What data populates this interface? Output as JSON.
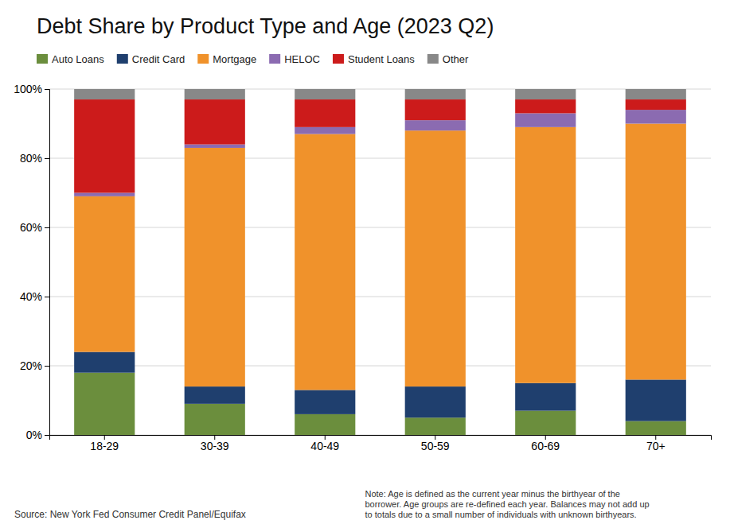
{
  "chart_data": {
    "type": "bar",
    "title": "Debt Share by Product Type and Age (2023 Q2)",
    "categories": [
      "18-29",
      "30-39",
      "40-49",
      "50-59",
      "60-69",
      "70+"
    ],
    "series": [
      {
        "name": "Auto Loans",
        "color": "#6b8e3d",
        "values": [
          18,
          9,
          6,
          5,
          7,
          4
        ]
      },
      {
        "name": "Credit Card",
        "color": "#1f3f6e",
        "values": [
          6,
          5,
          7,
          9,
          8,
          12
        ]
      },
      {
        "name": "Mortgage",
        "color": "#f0922b",
        "values": [
          45,
          69,
          74,
          74,
          74,
          74
        ]
      },
      {
        "name": "HELOC",
        "color": "#8b6bb1",
        "values": [
          1,
          1,
          2,
          3,
          4,
          4
        ]
      },
      {
        "name": "Student Loans",
        "color": "#cc1b1b",
        "values": [
          27,
          13,
          8,
          6,
          4,
          3
        ]
      },
      {
        "name": "Other",
        "color": "#888888",
        "values": [
          3,
          3,
          3,
          3,
          3,
          3
        ]
      }
    ],
    "stacked": true,
    "ylim": [
      0,
      100
    ],
    "yticks": [
      {
        "value": 0,
        "label": "0%"
      },
      {
        "value": 20,
        "label": "20%"
      },
      {
        "value": 40,
        "label": "40%"
      },
      {
        "value": 60,
        "label": "60%"
      },
      {
        "value": 80,
        "label": "80%"
      },
      {
        "value": 100,
        "label": "100%"
      }
    ],
    "grid": true,
    "legend": "upper left",
    "annotations": [
      "Source: New York Fed Consumer Credit Panel/Equifax",
      "Note: Age is defined as the current year minus the birthyear of the\nborrower. Age groups are re-defined each year. Balances may not add up\nto totals due to a small number of individuals with unknown birthyears."
    ]
  }
}
